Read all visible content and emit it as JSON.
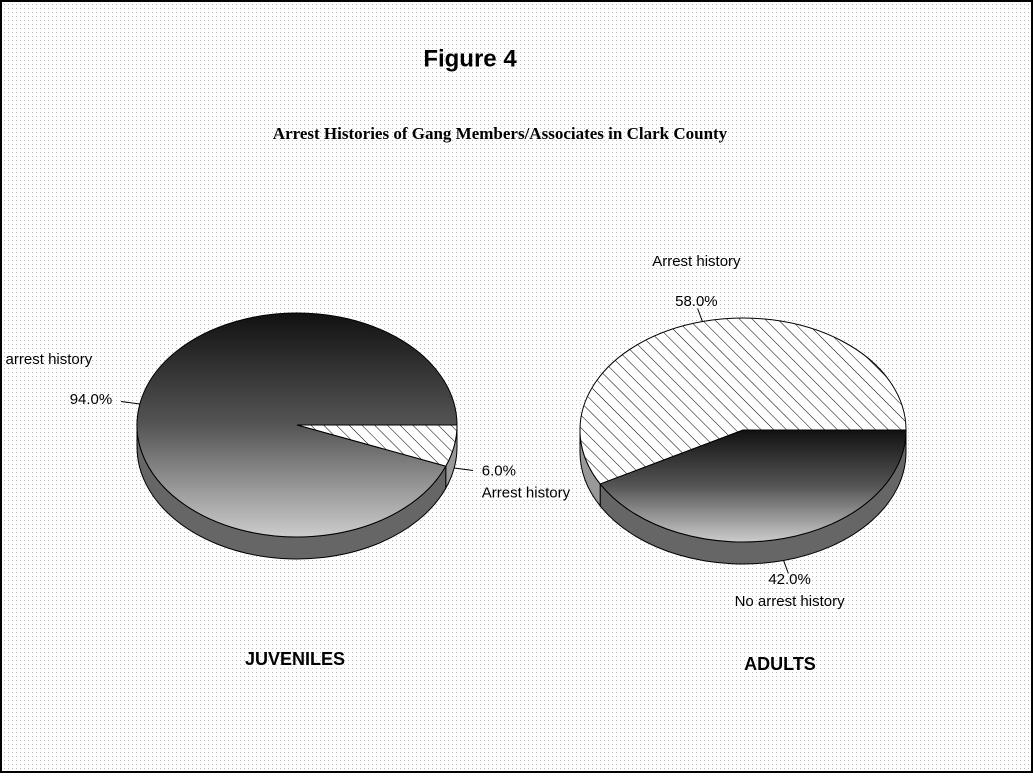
{
  "figure": "Figure 4",
  "title": "Arrest Histories of Gang Members/Associates in Clark County",
  "chart_data": [
    {
      "type": "pie",
      "title": "JUVENILES",
      "categories": [
        "Arrest history",
        "No arrest history"
      ],
      "values": [
        6,
        94
      ],
      "value_labels": [
        "6.0%",
        "94.0%"
      ],
      "colors": [
        "#ffffff",
        "#3c3c3c"
      ]
    },
    {
      "type": "pie",
      "title": "ADULTS",
      "categories": [
        "No arrest history",
        "Arrest history"
      ],
      "values": [
        42,
        58
      ],
      "value_labels": [
        "42.0%",
        "58.0%"
      ],
      "colors": [
        "#3c3c3c",
        "#ffffff"
      ]
    }
  ]
}
